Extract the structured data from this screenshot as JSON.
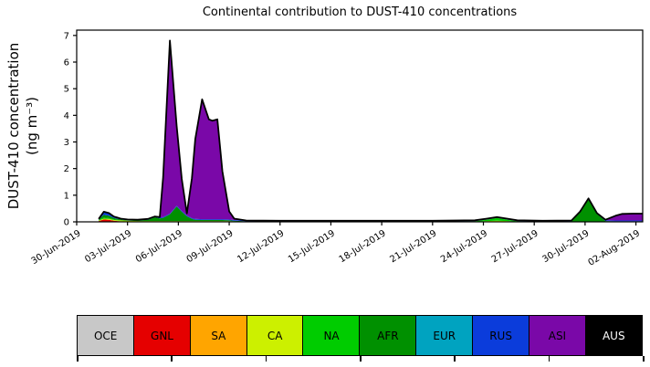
{
  "chart": {
    "title": "Continental contribution to DUST-410 concentrations",
    "ylabel_line1": "DUST-410 concentration",
    "ylabel_line2": "(ng m⁻³)"
  },
  "chart_data": {
    "type": "area",
    "stacked": true,
    "title": "Continental contribution to DUST-410 concentrations",
    "xlabel": "",
    "ylabel": "DUST-410 concentration (ng m⁻³)",
    "x_unit": "days since 30-Jun-2019",
    "xlim": [
      0,
      33.4
    ],
    "ylim": [
      0,
      7.2
    ],
    "grid": false,
    "legend_position": "bottom",
    "outline_color": "#000000",
    "yticks": [
      0,
      1,
      2,
      3,
      4,
      5,
      6,
      7
    ],
    "xtick_t": [
      0,
      3,
      6,
      9,
      12,
      15,
      18,
      21,
      24,
      27,
      30,
      33
    ],
    "xtick_labels": [
      "30-Jun-2019",
      "03-Jul-2019",
      "06-Jul-2019",
      "09-Jul-2019",
      "12-Jul-2019",
      "15-Jul-2019",
      "18-Jul-2019",
      "21-Jul-2019",
      "24-Jul-2019",
      "27-Jul-2019",
      "30-Jul-2019",
      "02-Aug-2019"
    ],
    "x": [
      1.3,
      1.6,
      1.9,
      2.2,
      2.6,
      3.0,
      3.6,
      4.2,
      4.6,
      4.9,
      5.1,
      5.5,
      5.9,
      6.2,
      6.5,
      6.8,
      7.0,
      7.4,
      7.8,
      8.0,
      8.3,
      8.6,
      9.0,
      9.3,
      10.0,
      12.0,
      15.0,
      18.0,
      21.0,
      23.5,
      24.2,
      24.8,
      25.4,
      26.0,
      27.5,
      29.2,
      29.7,
      30.2,
      30.7,
      31.2,
      31.8,
      32.2,
      32.8,
      33.4
    ],
    "series": [
      {
        "name": "OCE",
        "color": "#c8c8c8",
        "values": [
          0,
          0,
          0,
          0,
          0,
          0,
          0,
          0,
          0,
          0,
          0,
          0,
          0,
          0,
          0,
          0,
          0,
          0,
          0,
          0,
          0,
          0,
          0,
          0,
          0,
          0,
          0,
          0,
          0,
          0,
          0,
          0,
          0,
          0,
          0,
          0,
          0,
          0,
          0,
          0,
          0,
          0,
          0,
          0
        ]
      },
      {
        "name": "GNL",
        "color": "#e50000",
        "values": [
          0.03,
          0.09,
          0.08,
          0.04,
          0.02,
          0.01,
          0,
          0,
          0,
          0,
          0,
          0,
          0,
          0,
          0,
          0,
          0,
          0,
          0,
          0,
          0,
          0,
          0,
          0,
          0,
          0,
          0,
          0,
          0,
          0,
          0,
          0,
          0,
          0,
          0,
          0,
          0,
          0,
          0,
          0,
          0,
          0,
          0,
          0
        ]
      },
      {
        "name": "SA",
        "color": "#ffa500",
        "values": [
          0,
          0,
          0,
          0,
          0,
          0,
          0,
          0,
          0,
          0,
          0,
          0,
          0,
          0,
          0,
          0,
          0,
          0,
          0,
          0,
          0,
          0,
          0,
          0,
          0,
          0,
          0,
          0,
          0,
          0,
          0,
          0,
          0,
          0,
          0,
          0,
          0,
          0,
          0,
          0,
          0,
          0,
          0,
          0
        ]
      },
      {
        "name": "CA",
        "color": "#ccf000",
        "values": [
          0.02,
          0.03,
          0.03,
          0.03,
          0.03,
          0.03,
          0.03,
          0.03,
          0.03,
          0.03,
          0.03,
          0.03,
          0.03,
          0.03,
          0.03,
          0.03,
          0.03,
          0.03,
          0.03,
          0.03,
          0.03,
          0.03,
          0.03,
          0.02,
          0.01,
          0,
          0,
          0,
          0,
          0.01,
          0.03,
          0.04,
          0.03,
          0.01,
          0,
          0,
          0,
          0,
          0,
          0,
          0,
          0,
          0,
          0
        ]
      },
      {
        "name": "NA",
        "color": "#00cc00",
        "values": [
          0.02,
          0.04,
          0.03,
          0.02,
          0.01,
          0,
          0,
          0,
          0,
          0,
          0,
          0,
          0,
          0,
          0,
          0,
          0,
          0,
          0,
          0,
          0,
          0,
          0,
          0,
          0,
          0,
          0,
          0,
          0,
          0.01,
          0.05,
          0.1,
          0.05,
          0.01,
          0,
          0,
          0,
          0,
          0,
          0,
          0,
          0,
          0,
          0
        ]
      },
      {
        "name": "AFR",
        "color": "#009000",
        "values": [
          0.02,
          0.1,
          0.09,
          0.05,
          0.03,
          0.02,
          0.02,
          0.05,
          0.14,
          0.1,
          0.12,
          0.25,
          0.55,
          0.35,
          0.18,
          0.08,
          0.05,
          0.04,
          0.04,
          0.04,
          0.04,
          0.04,
          0.03,
          0.02,
          0.01,
          0.01,
          0.01,
          0.01,
          0.01,
          0.01,
          0.01,
          0.01,
          0.01,
          0.01,
          0.01,
          0.02,
          0.35,
          0.85,
          0.3,
          0.03,
          0.02,
          0.02,
          0.02,
          0.02
        ]
      },
      {
        "name": "EUR",
        "color": "#00a3c0",
        "values": [
          0,
          0,
          0,
          0,
          0,
          0,
          0,
          0,
          0,
          0,
          0,
          0,
          0,
          0,
          0,
          0,
          0,
          0,
          0,
          0,
          0,
          0,
          0,
          0,
          0,
          0,
          0,
          0,
          0,
          0,
          0,
          0,
          0,
          0,
          0,
          0,
          0,
          0,
          0,
          0,
          0,
          0,
          0,
          0
        ]
      },
      {
        "name": "RUS",
        "color": "#0b3cdb",
        "values": [
          0.02,
          0.12,
          0.1,
          0.06,
          0.03,
          0.03,
          0.03,
          0.03,
          0.03,
          0.03,
          0.03,
          0.03,
          0.03,
          0.03,
          0.03,
          0.03,
          0.03,
          0.03,
          0.03,
          0.03,
          0.03,
          0.03,
          0.03,
          0.03,
          0.03,
          0.03,
          0.03,
          0.03,
          0.03,
          0.03,
          0.03,
          0.03,
          0.03,
          0.03,
          0.03,
          0.03,
          0.03,
          0.03,
          0.03,
          0.03,
          0.03,
          0.03,
          0.03,
          0.03
        ]
      },
      {
        "name": "ASI",
        "color": "#7a08a8",
        "values": [
          0,
          0,
          0,
          0,
          0,
          0,
          0,
          0,
          0,
          0.02,
          1.5,
          6.5,
          3.0,
          1.2,
          0.08,
          1.5,
          3.0,
          4.5,
          3.75,
          3.7,
          3.75,
          1.8,
          0.3,
          0.05,
          0,
          0,
          0,
          0,
          0,
          0,
          0,
          0,
          0,
          0,
          0,
          0,
          0,
          0,
          0,
          0.02,
          0.18,
          0.25,
          0.26,
          0.26
        ]
      },
      {
        "name": "AUS",
        "color": "#000000",
        "values": [
          0,
          0,
          0,
          0,
          0,
          0,
          0,
          0,
          0,
          0,
          0,
          0,
          0,
          0,
          0,
          0,
          0,
          0,
          0,
          0,
          0,
          0,
          0,
          0,
          0,
          0,
          0,
          0,
          0,
          0,
          0,
          0,
          0,
          0,
          0,
          0,
          0,
          0,
          0,
          0,
          0,
          0,
          0,
          0
        ]
      }
    ]
  },
  "legend": {
    "items": [
      {
        "label": "OCE",
        "color": "#c8c8c8",
        "text_color": "#000000"
      },
      {
        "label": "GNL",
        "color": "#e50000",
        "text_color": "#000000"
      },
      {
        "label": "SA",
        "color": "#ffa500",
        "text_color": "#000000"
      },
      {
        "label": "CA",
        "color": "#ccf000",
        "text_color": "#000000"
      },
      {
        "label": "NA",
        "color": "#00cc00",
        "text_color": "#000000"
      },
      {
        "label": "AFR",
        "color": "#009000",
        "text_color": "#000000"
      },
      {
        "label": "EUR",
        "color": "#00a3c0",
        "text_color": "#000000"
      },
      {
        "label": "RUS",
        "color": "#0b3cdb",
        "text_color": "#000000"
      },
      {
        "label": "ASI",
        "color": "#7a08a8",
        "text_color": "#000000"
      },
      {
        "label": "AUS",
        "color": "#000000",
        "text_color": "#ffffff"
      }
    ]
  }
}
